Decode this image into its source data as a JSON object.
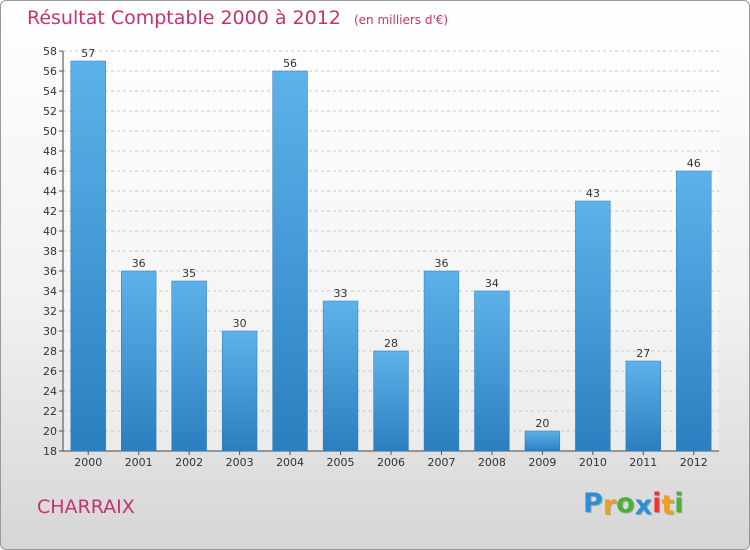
{
  "chart_data": {
    "type": "bar",
    "title": "Résultat Comptable 2000 à 2012",
    "subtitle": "(en milliers d'€)",
    "categories": [
      "2000",
      "2001",
      "2002",
      "2003",
      "2004",
      "2005",
      "2006",
      "2007",
      "2008",
      "2009",
      "2010",
      "2011",
      "2012"
    ],
    "values": [
      57,
      36,
      35,
      30,
      56,
      33,
      28,
      36,
      34,
      20,
      43,
      27,
      46
    ],
    "ylim": [
      18,
      58
    ],
    "ytick_step": 2,
    "xlabel": "",
    "ylabel": "",
    "grid": true,
    "bar_color": "#4a9fdc"
  },
  "location": "CHARRAIX",
  "logo": {
    "letters": [
      "P",
      "r",
      "o",
      "x",
      "i",
      "t",
      "i"
    ],
    "colors": [
      "#2e8fd8",
      "#f0a020",
      "#4caf3a",
      "#2e8fd8",
      "#e53935",
      "#f0a020",
      "#4caf3a"
    ]
  }
}
